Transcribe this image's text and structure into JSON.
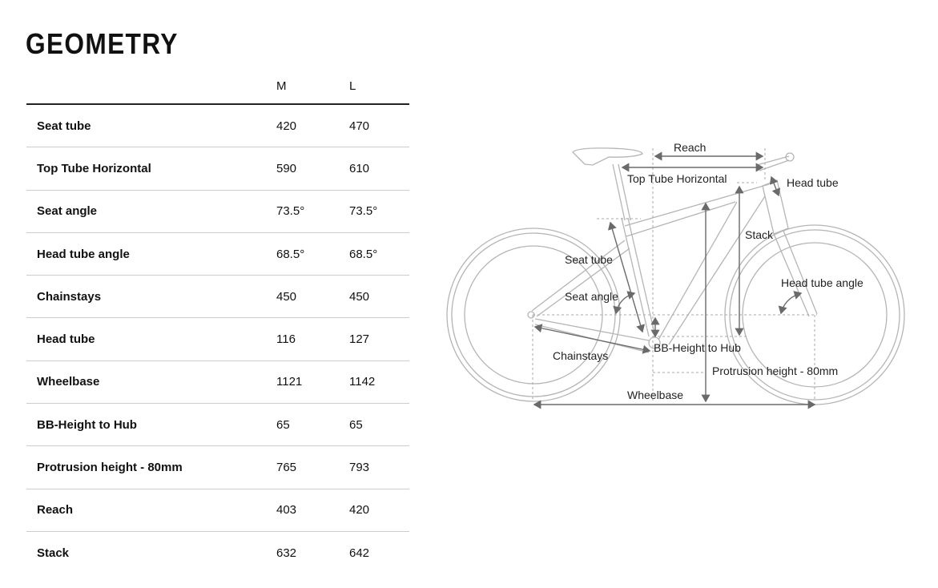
{
  "title": "GEOMETRY",
  "table": {
    "headers": [
      "",
      "M",
      "L"
    ],
    "rows": [
      {
        "label": "Seat tube",
        "M": "420",
        "L": "470"
      },
      {
        "label": "Top Tube Horizontal",
        "M": "590",
        "L": "610"
      },
      {
        "label": "Seat angle",
        "M": "73.5°",
        "L": "73.5°"
      },
      {
        "label": "Head tube angle",
        "M": "68.5°",
        "L": "68.5°"
      },
      {
        "label": "Chainstays",
        "M": "450",
        "L": "450"
      },
      {
        "label": "Head tube",
        "M": "116",
        "L": "127"
      },
      {
        "label": "Wheelbase",
        "M": "1121",
        "L": "1142"
      },
      {
        "label": "BB-Height to Hub",
        "M": "65",
        "L": "65"
      },
      {
        "label": "Protrusion height - 80mm",
        "M": "765",
        "L": "793"
      },
      {
        "label": "Reach",
        "M": "403",
        "L": "420"
      },
      {
        "label": "Stack",
        "M": "632",
        "L": "642"
      }
    ]
  },
  "diagram": {
    "labels": {
      "reach": "Reach",
      "top_tube": "Top Tube Horizontal",
      "head_tube": "Head tube",
      "stack": "Stack",
      "seat_tube": "Seat tube",
      "seat_angle": "Seat angle",
      "head_tube_angle": "Head tube angle",
      "chainstays": "Chainstays",
      "bb_height": "BB-Height to Hub",
      "protrusion": "Protrusion height - 80mm",
      "wheelbase": "Wheelbase"
    },
    "colors": {
      "frame": "#b5b5b5",
      "arrow": "#6a6a6a"
    }
  }
}
